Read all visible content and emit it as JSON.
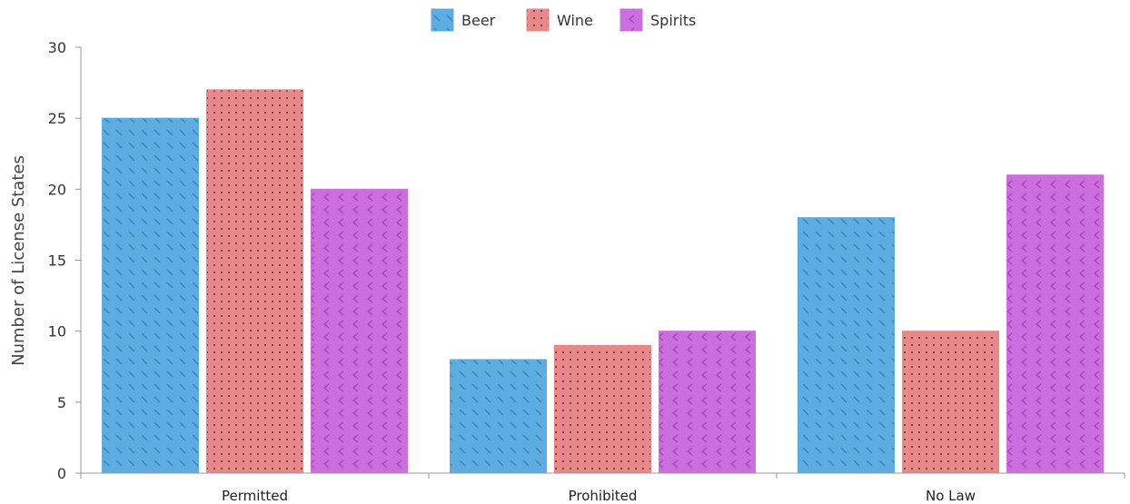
{
  "chart_data": {
    "type": "bar",
    "title": "",
    "xlabel": "",
    "ylabel": "Number of License States",
    "categories": [
      "Permitted",
      "Prohibited",
      "No Law"
    ],
    "series": [
      {
        "name": "Beer",
        "values": [
          25,
          8,
          18
        ],
        "color": "#5dade2",
        "pattern": "diagonal-dashes"
      },
      {
        "name": "Wine",
        "values": [
          27,
          9,
          10
        ],
        "color": "#e8888a",
        "pattern": "dots"
      },
      {
        "name": "Spirits",
        "values": [
          20,
          10,
          21
        ],
        "color": "#cc6ede",
        "pattern": "chevrons"
      }
    ],
    "ylim": [
      0,
      30
    ],
    "yticks": [
      "0",
      "5",
      "10",
      "15",
      "20",
      "25",
      "30"
    ],
    "grid": false,
    "legend_position": "top-center"
  }
}
